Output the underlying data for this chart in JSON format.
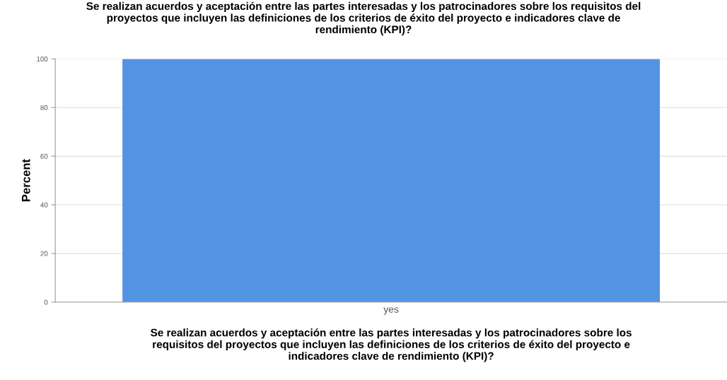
{
  "chart_data": {
    "type": "bar",
    "title": "Se realizan acuerdos y aceptación entre las partes interesadas y los patrocinadores sobre los requisitos del\nproyectos que incluyen las definiciones de los criterios de éxito del proyecto e indicadores clave de\nrendimiento (KPI)?",
    "xlabel": "Se realizan acuerdos y aceptación entre las partes interesadas y los patrocinadores sobre los\nrequisitos del proyectos que incluyen las definiciones de los criterios de éxito del proyecto e\nindicadores clave de rendimiento (KPI)?",
    "ylabel": "Percent",
    "categories": [
      "yes"
    ],
    "values": [
      100
    ],
    "color": "#5294e2",
    "ylim": [
      0,
      100
    ],
    "yticks": [
      0,
      20,
      40,
      60,
      80,
      100
    ],
    "grid": "y"
  }
}
